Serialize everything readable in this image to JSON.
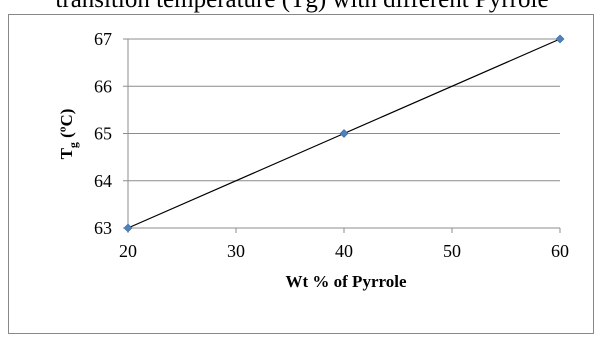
{
  "caption": "transition temperature (Tg) with different Pyrrole",
  "chart_data": {
    "type": "scatter",
    "title": "",
    "xlabel": "Wt % of Pyrrole",
    "ylabel": {
      "base": "T",
      "sub": "g",
      "rest": " (ºC)"
    },
    "x_ticks": [
      "20",
      "30",
      "40",
      "50",
      "60"
    ],
    "y_ticks": [
      "63",
      "64",
      "65",
      "66",
      "67"
    ],
    "xlim": [
      20,
      60
    ],
    "ylim": [
      63,
      67
    ],
    "grid": "horizontal",
    "legend": "none",
    "series": [
      {
        "x": [
          20,
          40,
          60
        ],
        "y": [
          63,
          65,
          67
        ],
        "marker_color": "#4f81bd",
        "line_color": "#000000"
      }
    ]
  }
}
